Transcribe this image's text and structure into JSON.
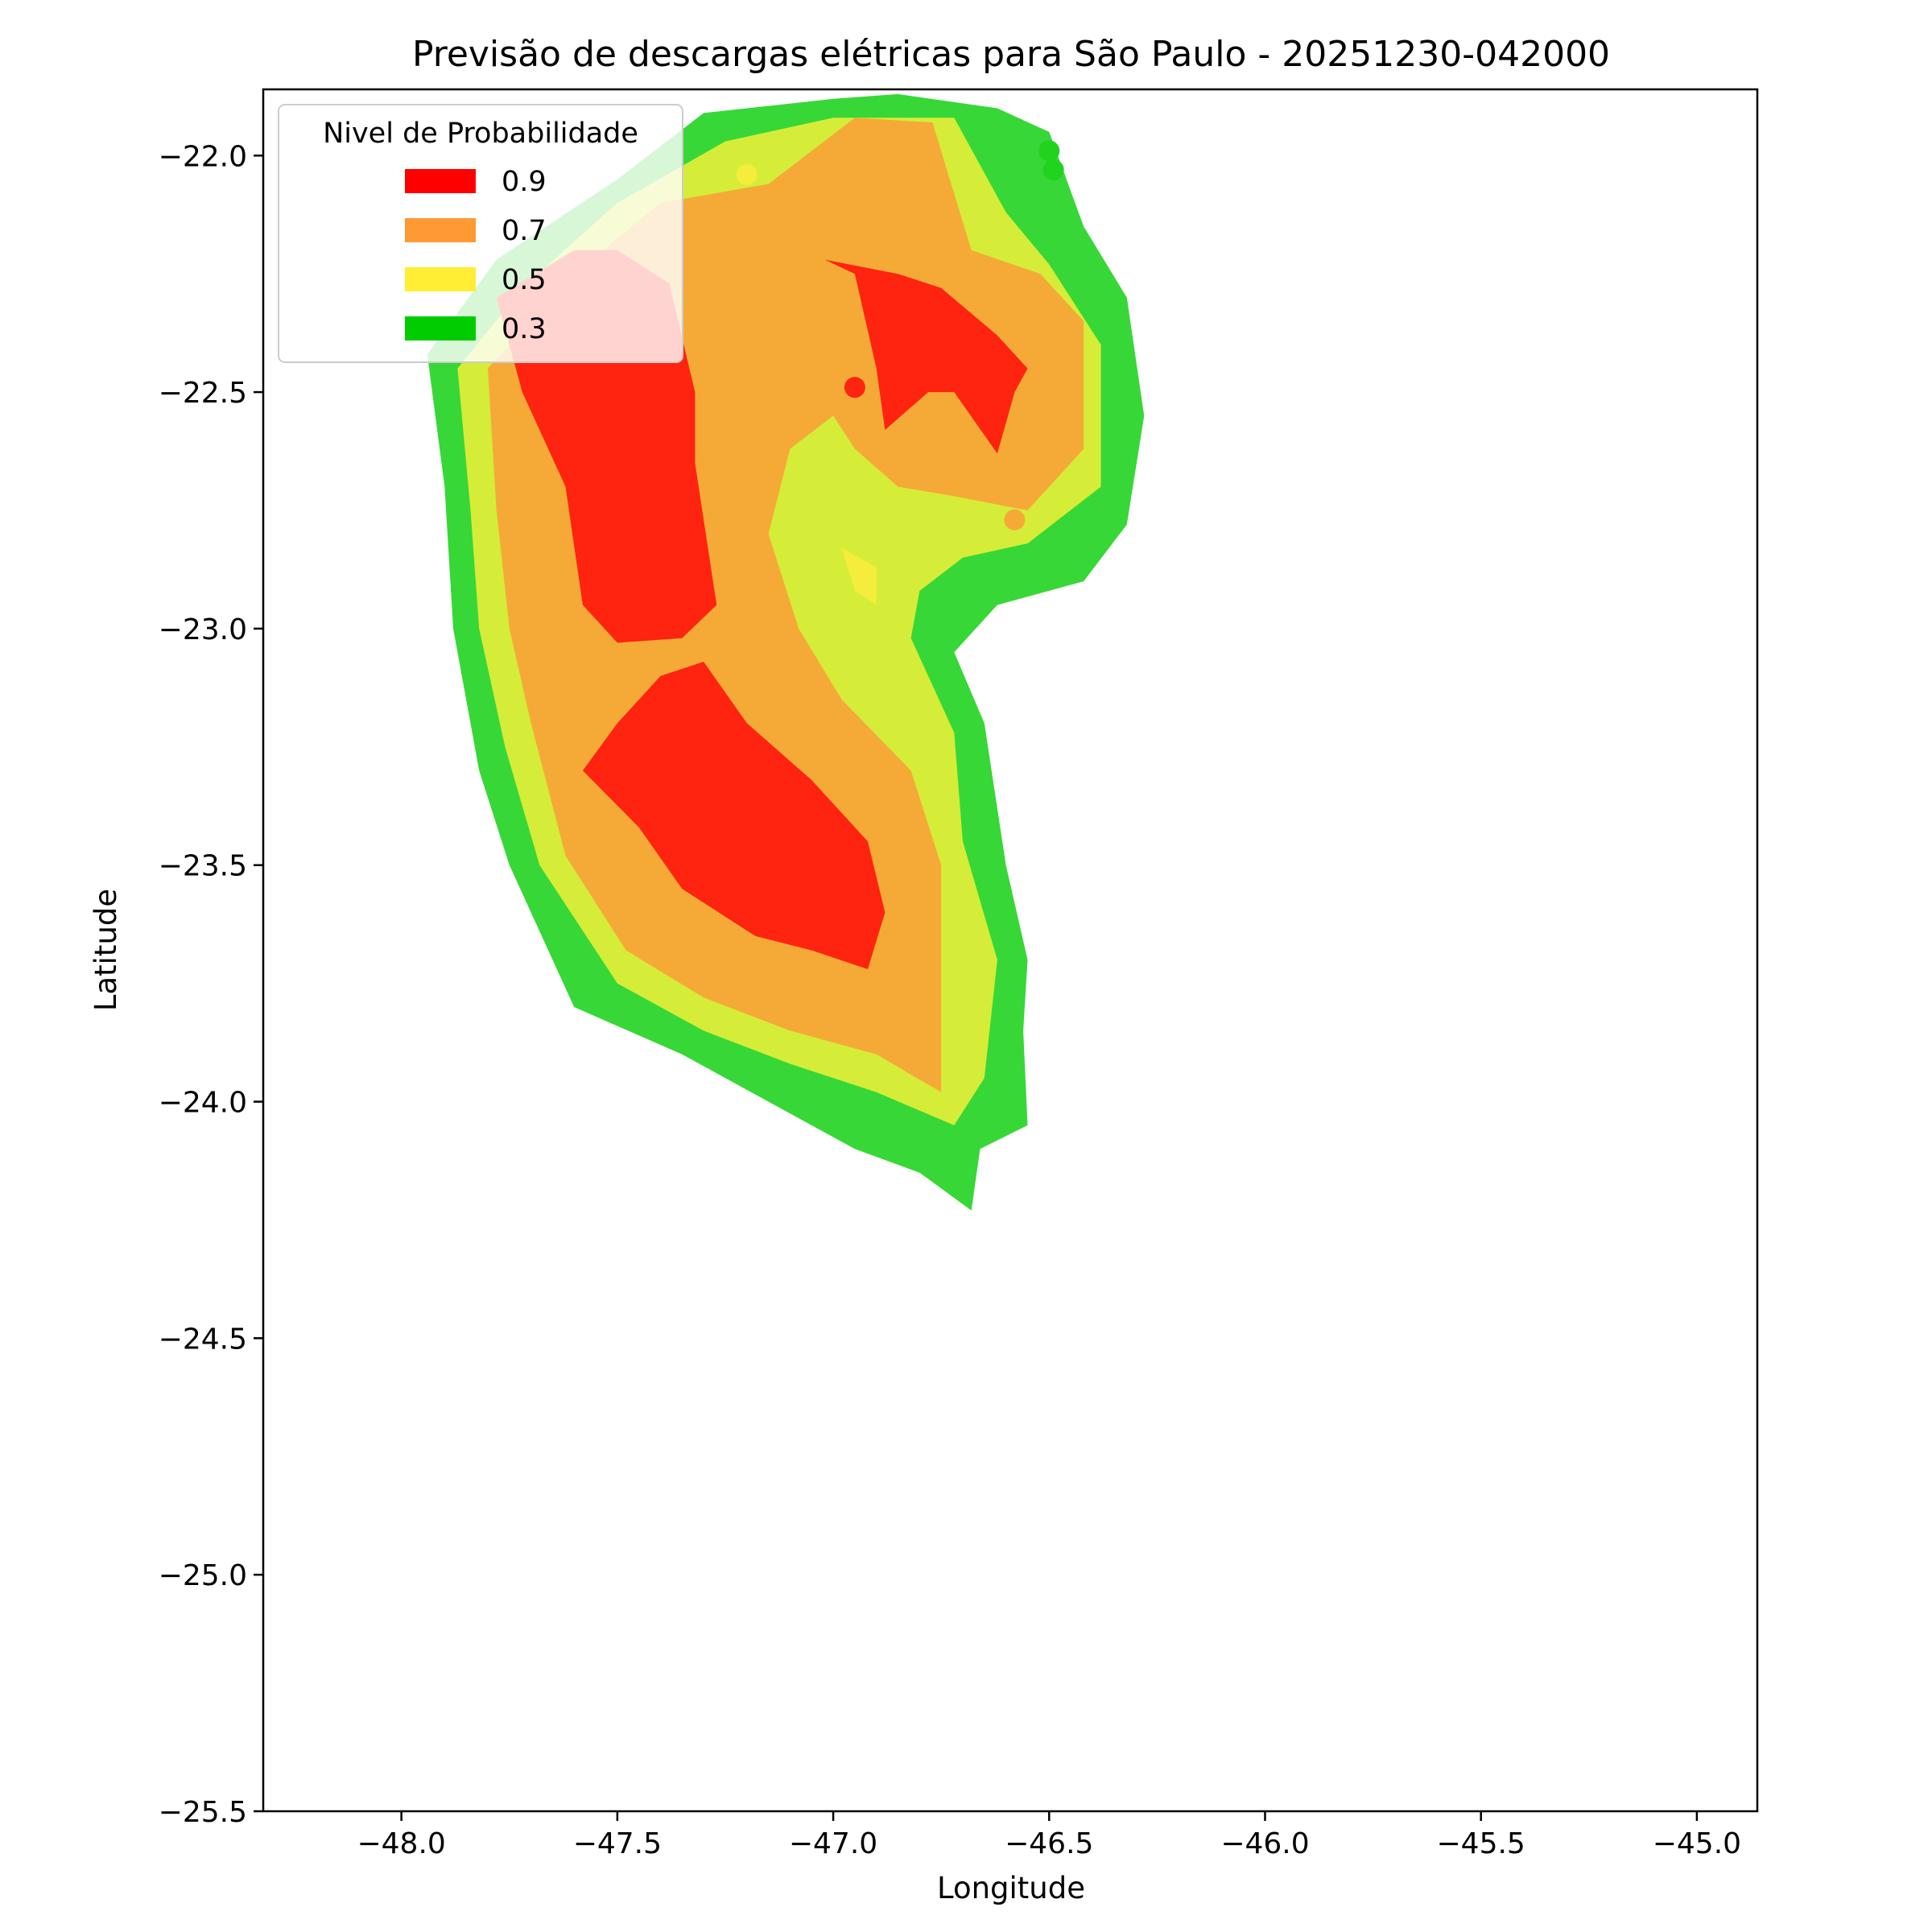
{
  "chart_data": {
    "type": "heatmap",
    "title": "Previsão de descargas elétricas para São Paulo - 20251230-042000",
    "xlabel": "Longitude",
    "ylabel": "Latitude",
    "xlim": [
      -48.32,
      -44.86
    ],
    "ylim": [
      -25.5,
      -21.86
    ],
    "x_ticks": [
      -48.0,
      -47.5,
      -47.0,
      -46.5,
      -46.0,
      -45.5,
      -45.0
    ],
    "x_tick_labels": [
      "−48.0",
      "−47.5",
      "−47.0",
      "−46.5",
      "−46.0",
      "−45.5",
      "−45.0"
    ],
    "y_ticks": [
      -22.0,
      -22.5,
      -23.0,
      -23.5,
      -24.0,
      -24.5,
      -25.0,
      -25.5
    ],
    "y_tick_labels": [
      "−22.0",
      "−22.5",
      "−23.0",
      "−23.5",
      "−24.0",
      "−24.5",
      "−25.0",
      "−25.5"
    ],
    "grid": false,
    "legend": {
      "title": "Nivel de Probabilidade",
      "placement": "top-left",
      "entries": [
        {
          "label": "0.9",
          "color": "#ff0000"
        },
        {
          "label": "0.7",
          "color": "#ff9933"
        },
        {
          "label": "0.5",
          "color": "#ffee33"
        },
        {
          "label": "0.3",
          "color": "#00cc00"
        }
      ]
    },
    "regions": [
      {
        "level": 0.3,
        "color": "#37d737",
        "polygon": [
          [
            -47.3,
            -21.91
          ],
          [
            -47.0,
            -21.88
          ],
          [
            -46.85,
            -21.87
          ],
          [
            -46.62,
            -21.9
          ],
          [
            -46.5,
            -21.95
          ],
          [
            -46.42,
            -22.15
          ],
          [
            -46.32,
            -22.3
          ],
          [
            -46.28,
            -22.55
          ],
          [
            -46.32,
            -22.78
          ],
          [
            -46.42,
            -22.9
          ],
          [
            -46.62,
            -22.95
          ],
          [
            -46.72,
            -23.05
          ],
          [
            -46.65,
            -23.2
          ],
          [
            -46.6,
            -23.5
          ],
          [
            -46.55,
            -23.7
          ],
          [
            -46.56,
            -23.85
          ],
          [
            -46.55,
            -24.05
          ],
          [
            -46.66,
            -24.1
          ],
          [
            -46.68,
            -24.23
          ],
          [
            -46.8,
            -24.15
          ],
          [
            -46.95,
            -24.1
          ],
          [
            -47.15,
            -24.0
          ],
          [
            -47.35,
            -23.9
          ],
          [
            -47.6,
            -23.8
          ],
          [
            -47.75,
            -23.5
          ],
          [
            -47.82,
            -23.3
          ],
          [
            -47.88,
            -23.0
          ],
          [
            -47.9,
            -22.7
          ],
          [
            -47.94,
            -22.42
          ],
          [
            -47.78,
            -22.22
          ],
          [
            -47.5,
            -22.05
          ]
        ]
      },
      {
        "level": 0.5,
        "color": "#d5ed38",
        "polygon": [
          [
            -47.25,
            -21.97
          ],
          [
            -47.0,
            -21.92
          ],
          [
            -46.72,
            -21.92
          ],
          [
            -46.6,
            -22.12
          ],
          [
            -46.5,
            -22.23
          ],
          [
            -46.38,
            -22.4
          ],
          [
            -46.38,
            -22.7
          ],
          [
            -46.55,
            -22.82
          ],
          [
            -46.7,
            -22.85
          ],
          [
            -46.8,
            -22.92
          ],
          [
            -46.82,
            -23.02
          ],
          [
            -46.72,
            -23.22
          ],
          [
            -46.7,
            -23.45
          ],
          [
            -46.62,
            -23.7
          ],
          [
            -46.65,
            -23.95
          ],
          [
            -46.72,
            -24.05
          ],
          [
            -46.9,
            -23.98
          ],
          [
            -47.1,
            -23.92
          ],
          [
            -47.3,
            -23.85
          ],
          [
            -47.5,
            -23.75
          ],
          [
            -47.68,
            -23.5
          ],
          [
            -47.76,
            -23.25
          ],
          [
            -47.82,
            -23.0
          ],
          [
            -47.84,
            -22.75
          ],
          [
            -47.87,
            -22.45
          ],
          [
            -47.72,
            -22.28
          ],
          [
            -47.5,
            -22.1
          ]
        ]
      },
      {
        "level": 0.7,
        "color": "#f5aa38",
        "polygon": [
          [
            -47.15,
            -22.06
          ],
          [
            -46.95,
            -21.92
          ],
          [
            -46.77,
            -21.93
          ],
          [
            -46.68,
            -22.2
          ],
          [
            -46.52,
            -22.25
          ],
          [
            -46.42,
            -22.35
          ],
          [
            -46.42,
            -22.62
          ],
          [
            -46.55,
            -22.75
          ],
          [
            -46.72,
            -22.72
          ],
          [
            -46.85,
            -22.7
          ],
          [
            -46.95,
            -22.62
          ],
          [
            -47.0,
            -22.55
          ],
          [
            -47.1,
            -22.62
          ],
          [
            -47.15,
            -22.8
          ],
          [
            -47.08,
            -23.0
          ],
          [
            -46.98,
            -23.15
          ],
          [
            -46.82,
            -23.3
          ],
          [
            -46.75,
            -23.5
          ],
          [
            -46.75,
            -23.75
          ],
          [
            -46.75,
            -23.98
          ],
          [
            -46.9,
            -23.9
          ],
          [
            -47.1,
            -23.85
          ],
          [
            -47.3,
            -23.78
          ],
          [
            -47.48,
            -23.68
          ],
          [
            -47.62,
            -23.48
          ],
          [
            -47.7,
            -23.2
          ],
          [
            -47.75,
            -23.0
          ],
          [
            -47.78,
            -22.75
          ],
          [
            -47.8,
            -22.45
          ],
          [
            -47.6,
            -22.25
          ],
          [
            -47.4,
            -22.1
          ]
        ]
      },
      {
        "level": 0.9,
        "color": "#fe240f",
        "polygon": [
          [
            -47.5,
            -22.2
          ],
          [
            -47.38,
            -22.27
          ],
          [
            -47.32,
            -22.5
          ],
          [
            -47.32,
            -22.65
          ],
          [
            -47.27,
            -22.95
          ],
          [
            -47.35,
            -23.02
          ],
          [
            -47.5,
            -23.03
          ],
          [
            -47.58,
            -22.95
          ],
          [
            -47.62,
            -22.7
          ],
          [
            -47.72,
            -22.5
          ],
          [
            -47.78,
            -22.3
          ],
          [
            -47.6,
            -22.2
          ]
        ]
      },
      {
        "level": 0.9,
        "color": "#fe240f",
        "polygon": [
          [
            -47.3,
            -23.07
          ],
          [
            -47.2,
            -23.2
          ],
          [
            -47.05,
            -23.32
          ],
          [
            -46.92,
            -23.45
          ],
          [
            -46.88,
            -23.6
          ],
          [
            -46.92,
            -23.72
          ],
          [
            -47.05,
            -23.68
          ],
          [
            -47.18,
            -23.65
          ],
          [
            -47.35,
            -23.55
          ],
          [
            -47.45,
            -23.42
          ],
          [
            -47.58,
            -23.3
          ],
          [
            -47.5,
            -23.2
          ],
          [
            -47.4,
            -23.1
          ]
        ]
      },
      {
        "level": 0.9,
        "color": "#fe240f",
        "polygon": [
          [
            -47.02,
            -22.22
          ],
          [
            -46.95,
            -22.25
          ],
          [
            -46.9,
            -22.45
          ],
          [
            -46.88,
            -22.58
          ],
          [
            -46.78,
            -22.5
          ],
          [
            -46.72,
            -22.5
          ],
          [
            -46.62,
            -22.63
          ],
          [
            -46.58,
            -22.5
          ],
          [
            -46.55,
            -22.45
          ],
          [
            -46.62,
            -22.38
          ],
          [
            -46.75,
            -22.28
          ],
          [
            -46.85,
            -22.25
          ]
        ]
      },
      {
        "level": 0.5,
        "color": "#f4ed3c",
        "polygon": [
          [
            -46.98,
            -22.83
          ],
          [
            -46.95,
            -22.92
          ],
          [
            -46.9,
            -22.95
          ],
          [
            -46.9,
            -22.87
          ]
        ]
      }
    ],
    "points": [
      {
        "x": -47.2,
        "y": -22.04,
        "level": 0.5,
        "color": "#f4ed3c"
      },
      {
        "x": -46.95,
        "y": -22.49,
        "level": 0.9,
        "color": "#fe240f"
      },
      {
        "x": -46.58,
        "y": -22.77,
        "level": 0.7,
        "color": "#f5aa38"
      },
      {
        "x": -46.5,
        "y": -21.99,
        "level": 0.3,
        "color": "#1fd31f"
      },
      {
        "x": -46.49,
        "y": -22.03,
        "level": 0.3,
        "color": "#1fd31f"
      }
    ]
  }
}
